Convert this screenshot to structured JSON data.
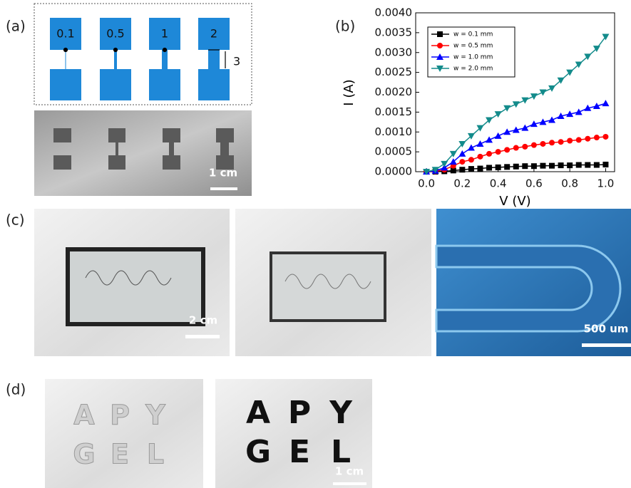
{
  "panels": {
    "a": {
      "label": "(a)",
      "widths": [
        "0.1",
        "0.5",
        "1",
        "2"
      ],
      "length": "3",
      "scale_bar": "1 cm"
    },
    "b": {
      "label": "(b)"
    },
    "c": {
      "label": "(c)",
      "scale_bars": [
        "2 cm",
        "500 um"
      ]
    },
    "d": {
      "label": "(d)",
      "letters": [
        "A",
        "P",
        "Y",
        "G",
        "E",
        "L"
      ],
      "scale_bar": "1 cm"
    }
  },
  "chart_data": {
    "type": "line",
    "xlabel": "V (V)",
    "ylabel": "I (A)",
    "x": [
      0.0,
      0.05,
      0.1,
      0.15,
      0.2,
      0.25,
      0.3,
      0.35,
      0.4,
      0.45,
      0.5,
      0.55,
      0.6,
      0.65,
      0.7,
      0.75,
      0.8,
      0.85,
      0.9,
      0.95,
      1.0
    ],
    "series": [
      {
        "name": "w = 0.1 mm",
        "color": "#000000",
        "marker": "square",
        "values": [
          0,
          0,
          1e-05,
          3e-05,
          5e-05,
          7e-05,
          8e-05,
          0.0001,
          0.00011,
          0.00012,
          0.00013,
          0.00014,
          0.00014,
          0.00015,
          0.00015,
          0.00016,
          0.00016,
          0.00017,
          0.00017,
          0.00017,
          0.00018
        ]
      },
      {
        "name": "w = 0.5 mm",
        "color": "#ff0000",
        "marker": "circle",
        "values": [
          0,
          1e-05,
          5e-05,
          0.00015,
          0.00025,
          0.0003,
          0.00038,
          0.00045,
          0.0005,
          0.00055,
          0.0006,
          0.00063,
          0.00067,
          0.0007,
          0.00073,
          0.00075,
          0.00078,
          0.0008,
          0.00083,
          0.00086,
          0.00088
        ]
      },
      {
        "name": "w = 1.0 mm",
        "color": "#0000ff",
        "marker": "triangle-up",
        "values": [
          0,
          2e-05,
          0.0001,
          0.00025,
          0.00045,
          0.0006,
          0.0007,
          0.0008,
          0.0009,
          0.001,
          0.00105,
          0.0011,
          0.0012,
          0.00125,
          0.0013,
          0.0014,
          0.00145,
          0.0015,
          0.0016,
          0.00165,
          0.00172
        ]
      },
      {
        "name": "w = 2.0 mm",
        "color": "#138b8b",
        "marker": "triangle-down",
        "values": [
          0,
          5e-05,
          0.0002,
          0.00045,
          0.0007,
          0.0009,
          0.0011,
          0.0013,
          0.00145,
          0.0016,
          0.0017,
          0.0018,
          0.0019,
          0.002,
          0.0021,
          0.0023,
          0.0025,
          0.0027,
          0.0029,
          0.0031,
          0.0034
        ]
      }
    ],
    "xlim": [
      -0.06,
      1.05
    ],
    "ylim": [
      0,
      0.004
    ],
    "xticks": [
      {
        "value": 0,
        "label": "0.0"
      },
      0.2,
      0.4,
      0.6,
      0.8,
      {
        "value": 1,
        "label": "1.0"
      }
    ],
    "yticks": [
      {
        "value": 0,
        "label": "0.0000"
      },
      0.0005,
      {
        "value": 0.001,
        "label": "0.0010"
      },
      0.0015,
      {
        "value": 0.002,
        "label": "0.0020"
      },
      0.0025,
      {
        "value": 0.003,
        "label": "0.0030"
      },
      0.0035,
      {
        "value": 0.004,
        "label": "0.0040"
      }
    ],
    "legend": "upper-left"
  }
}
